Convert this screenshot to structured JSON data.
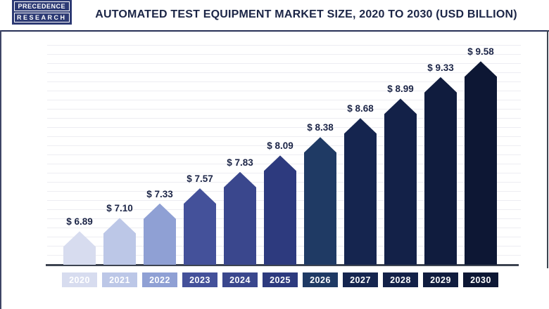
{
  "brand": {
    "line1": "PRECEDENCE",
    "line2": "RESEARCH"
  },
  "header": {
    "title": "AUTOMATED TEST EQUIPMENT MARKET SIZE, 2020 TO 2030 (USD BILLION)"
  },
  "colors": {
    "title_text": "#1b2546",
    "header_rule": "#272f56",
    "axis_line": "#3d4451",
    "gridline": "#ededf2",
    "value_label_text": "#1c2547",
    "year_label_text": "#ffffff",
    "logo_background": "#2d3a74"
  },
  "chart_data": {
    "type": "bar",
    "title": "Automated Test Equipment Market Size, 2020 to 2030 (USD Billion)",
    "unit": "USD Billion",
    "categories": [
      "2020",
      "2021",
      "2022",
      "2023",
      "2024",
      "2025",
      "2026",
      "2027",
      "2028",
      "2029",
      "2030"
    ],
    "values": [
      6.89,
      7.1,
      7.33,
      7.57,
      7.83,
      8.09,
      8.38,
      8.68,
      8.99,
      9.33,
      9.58
    ],
    "label_prefix": "$ ",
    "bar_colors": [
      "#d7dcef",
      "#bcc7e7",
      "#8fa0d4",
      "#44519a",
      "#3a478d",
      "#2d3a7e",
      "#1f3a64",
      "#15254f",
      "#132148",
      "#101c3e",
      "#0d1734"
    ],
    "xlabel": "",
    "ylabel": "",
    "y_axis_visible": false,
    "x_axis_visible": true,
    "grid": "horizontal",
    "legend": null,
    "baseline_value": 6.36,
    "ylim": [
      6.36,
      9.92
    ]
  }
}
